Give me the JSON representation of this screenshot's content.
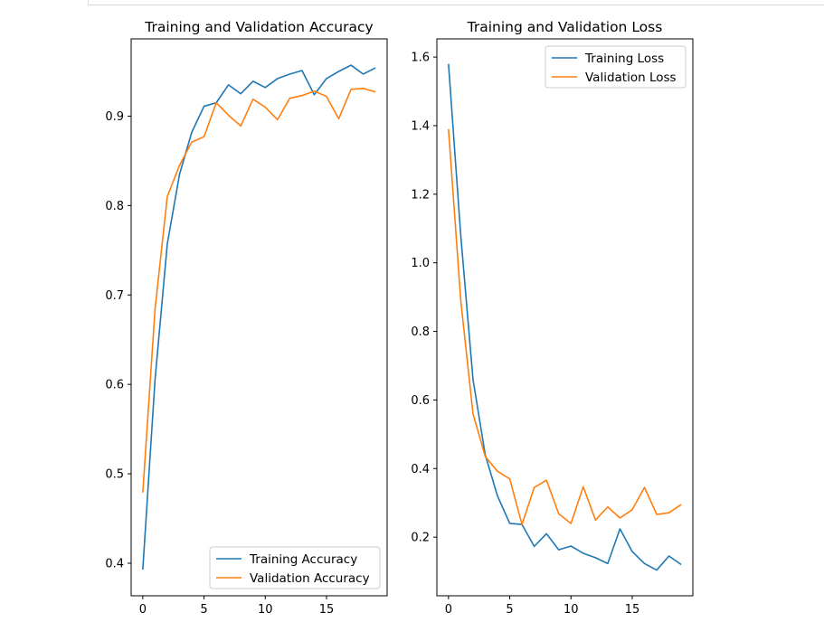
{
  "chart_data": [
    {
      "type": "line",
      "title": "Training and Validation Accuracy",
      "xlabel": "",
      "ylabel": "",
      "x": [
        0,
        1,
        2,
        3,
        4,
        5,
        6,
        7,
        8,
        9,
        10,
        11,
        12,
        13,
        14,
        15,
        16,
        17,
        18,
        19
      ],
      "xlim": [
        -0.95,
        19.95
      ],
      "ylim": [
        0.3636,
        0.9864
      ],
      "xticks": [
        0,
        5,
        10,
        15
      ],
      "xtick_labels": [
        "0",
        "5",
        "10",
        "15"
      ],
      "yticks": [
        0.4,
        0.5,
        0.6,
        0.7,
        0.8,
        0.9
      ],
      "ytick_labels": [
        "0.4",
        "0.5",
        "0.6",
        "0.7",
        "0.8",
        "0.9"
      ],
      "legend_position": "lower-right",
      "grid": false,
      "series": [
        {
          "name": "Training Accuracy",
          "color": "#1f77b4",
          "values": [
            0.393,
            0.605,
            0.757,
            0.835,
            0.882,
            0.911,
            0.915,
            0.935,
            0.925,
            0.939,
            0.932,
            0.942,
            0.947,
            0.951,
            0.924,
            0.942,
            0.95,
            0.957,
            0.947,
            0.954
          ]
        },
        {
          "name": "Validation Accuracy",
          "color": "#ff7f0e",
          "values": [
            0.479,
            0.684,
            0.81,
            0.845,
            0.871,
            0.877,
            0.915,
            0.901,
            0.889,
            0.919,
            0.91,
            0.896,
            0.92,
            0.923,
            0.928,
            0.922,
            0.897,
            0.93,
            0.931,
            0.927
          ]
        }
      ]
    },
    {
      "type": "line",
      "title": "Training and Validation Loss",
      "xlabel": "",
      "ylabel": "",
      "x": [
        0,
        1,
        2,
        3,
        4,
        5,
        6,
        7,
        8,
        9,
        10,
        11,
        12,
        13,
        14,
        15,
        16,
        17,
        18,
        19
      ],
      "xlim": [
        -0.95,
        19.95
      ],
      "ylim": [
        0.029,
        1.653
      ],
      "xticks": [
        0,
        5,
        10,
        15
      ],
      "xtick_labels": [
        "0",
        "5",
        "10",
        "15"
      ],
      "yticks": [
        0.2,
        0.4,
        0.6,
        0.8,
        1.0,
        1.2,
        1.4,
        1.6
      ],
      "ytick_labels": [
        "0.2",
        "0.4",
        "0.6",
        "0.8",
        "1.0",
        "1.2",
        "1.4",
        "1.6"
      ],
      "legend_position": "upper-right",
      "grid": false,
      "series": [
        {
          "name": "Training Loss",
          "color": "#1f77b4",
          "values": [
            1.58,
            1.08,
            0.66,
            0.44,
            0.32,
            0.24,
            0.237,
            0.173,
            0.21,
            0.163,
            0.174,
            0.153,
            0.14,
            0.123,
            0.224,
            0.158,
            0.123,
            0.104,
            0.145,
            0.12
          ]
        },
        {
          "name": "Validation Loss",
          "color": "#ff7f0e",
          "values": [
            1.39,
            0.89,
            0.56,
            0.435,
            0.392,
            0.37,
            0.237,
            0.345,
            0.366,
            0.268,
            0.24,
            0.347,
            0.25,
            0.288,
            0.256,
            0.28,
            0.345,
            0.266,
            0.271,
            0.295
          ]
        }
      ]
    }
  ]
}
